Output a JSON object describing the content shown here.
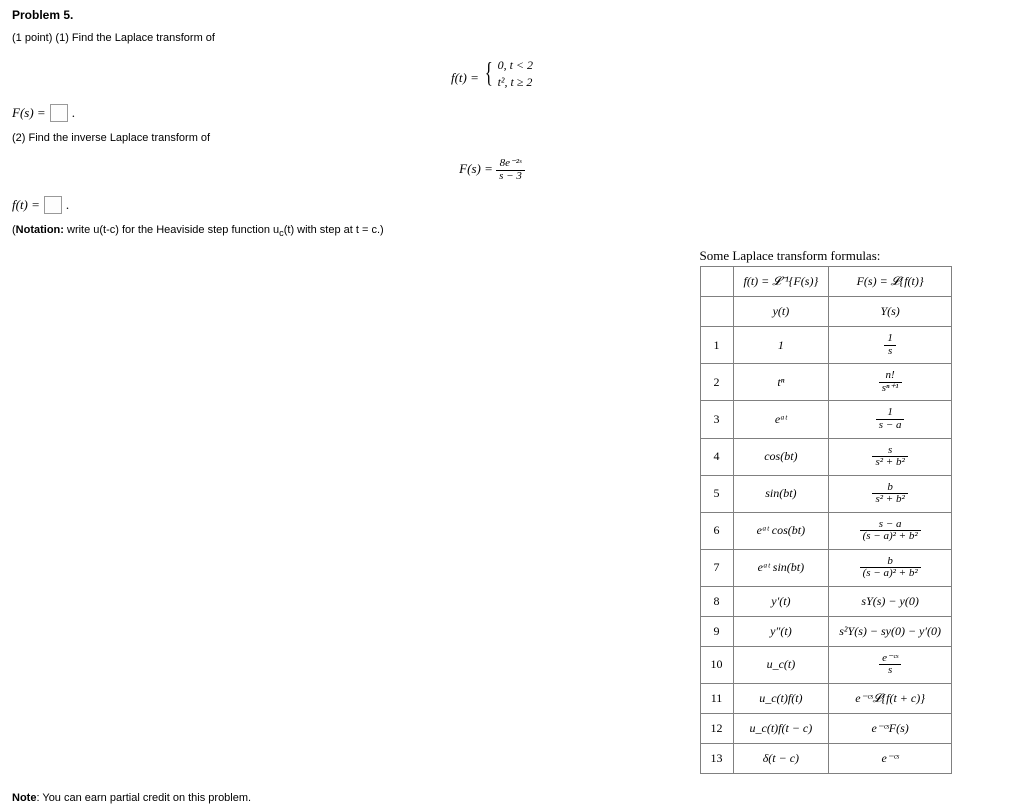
{
  "problem": {
    "title": "Problem 5.",
    "part1_prompt": "(1 point) (1) Find the Laplace transform of",
    "eq1_left": "f(t) = ",
    "piecewise_row1": "0,    t < 2",
    "piecewise_row2": "t²,   t ≥ 2",
    "answer1_label": "F(s) = ",
    "part2_prompt": "(2) Find the inverse Laplace transform of",
    "eq2_left": "F(s) = ",
    "eq2_num": "8e⁻²ˢ",
    "eq2_den": "s − 3",
    "answer2_label": "f(t) = ",
    "notation_open": "(",
    "notation_bold": "Notation:",
    "notation_rest": " write u(t-c) for the Heaviside step function u",
    "notation_sub": "c",
    "notation_rest2": "(t) with step at t = c.)",
    "note_bold": "Note",
    "note_text": ": You can earn partial credit on this problem."
  },
  "table": {
    "caption": "Some Laplace transform formulas:",
    "header_left": "f(t) = 𝓛⁻¹{F(s)}",
    "header_right": "F(s) =  𝓛{f(t)}",
    "sub_left": "y(t)",
    "sub_right": "Y(s)",
    "rows": [
      {
        "n": "1",
        "l": "1",
        "r_num": "1",
        "r_den": "s"
      },
      {
        "n": "2",
        "l": "tⁿ",
        "r_num": "n!",
        "r_den": "sⁿ⁺¹"
      },
      {
        "n": "3",
        "l": "eᵃᵗ",
        "r_num": "1",
        "r_den": "s − a"
      },
      {
        "n": "4",
        "l": "cos(bt)",
        "r_num": "s",
        "r_den": "s² + b²"
      },
      {
        "n": "5",
        "l": "sin(bt)",
        "r_num": "b",
        "r_den": "s² + b²"
      },
      {
        "n": "6",
        "l": "eᵃᵗ cos(bt)",
        "r_num": "s − a",
        "r_den": "(s − a)² + b²"
      },
      {
        "n": "7",
        "l": "eᵃᵗ sin(bt)",
        "r_num": "b",
        "r_den": "(s − a)² + b²"
      },
      {
        "n": "8",
        "l": "y′(t)",
        "r": "sY(s) − y(0)"
      },
      {
        "n": "9",
        "l": "y″(t)",
        "r": "s²Y(s) − sy(0) − y′(0)"
      },
      {
        "n": "10",
        "l": "u_c(t)",
        "r_num": "e⁻ᶜˢ",
        "r_den": "s"
      },
      {
        "n": "11",
        "l": "u_c(t)f(t)",
        "r": "e⁻ᶜˢ𝓛{f(t + c)}"
      },
      {
        "n": "12",
        "l": "u_c(t)f(t − c)",
        "r": "e⁻ᶜˢF(s)"
      },
      {
        "n": "13",
        "l": "δ(t − c)",
        "r": "e⁻ᶜˢ"
      }
    ]
  },
  "style": {
    "body_bg": "#ffffff",
    "text_color": "#000000",
    "border_color": "#808080",
    "table_col_widths": [
      38,
      150,
      170
    ]
  }
}
